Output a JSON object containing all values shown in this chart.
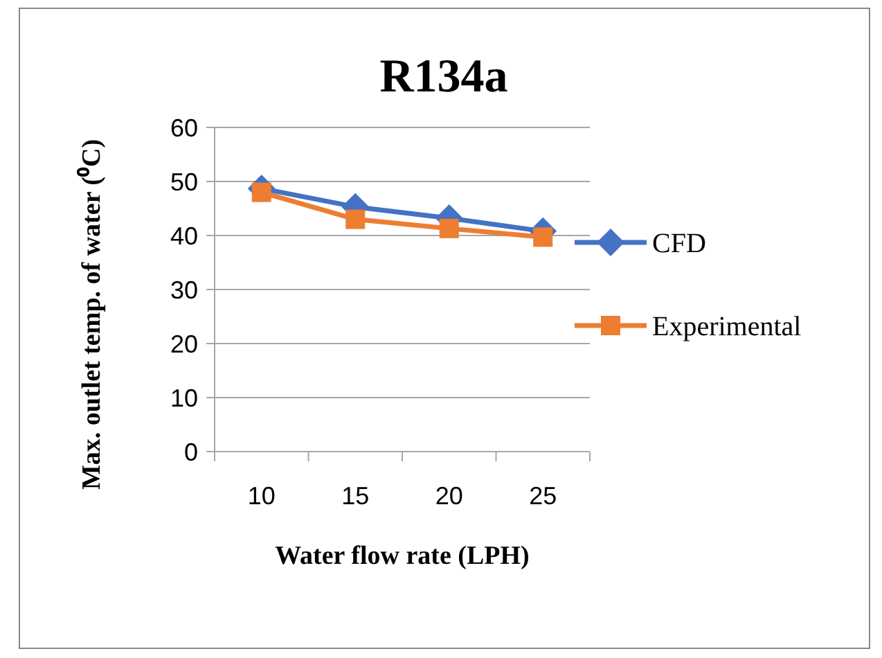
{
  "chart_data": {
    "type": "line",
    "title": "R134a",
    "xlabel": "Water flow rate (LPH)",
    "ylabel": "Max. outlet temp. of water (⁰C)",
    "categories": [
      "10",
      "15",
      "20",
      "25"
    ],
    "series": [
      {
        "name": "CFD",
        "color": "#4472c4",
        "marker": "diamond",
        "values": [
          48.7,
          45.3,
          43.2,
          40.8
        ]
      },
      {
        "name": "Experimental",
        "color": "#ed7d31",
        "marker": "square",
        "values": [
          48.0,
          43.0,
          41.3,
          39.7
        ]
      }
    ],
    "ylim": [
      0,
      60
    ],
    "yticks": [
      0,
      10,
      20,
      30,
      40,
      50,
      60
    ],
    "grid": "y",
    "legend": "right"
  }
}
